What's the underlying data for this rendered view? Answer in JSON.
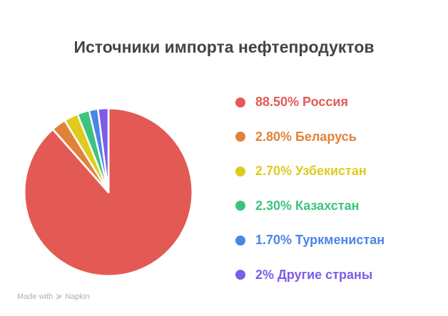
{
  "chart_data": {
    "type": "pie",
    "title": "Источники импорта нефтепродуктов",
    "slices": [
      {
        "label": "88.50% Россия",
        "value": 88.5,
        "color": "#e35a55"
      },
      {
        "label": "2.80% Беларусь",
        "value": 2.8,
        "color": "#e0823a"
      },
      {
        "label": "2.70% Узбекистан",
        "value": 2.7,
        "color": "#dfcb1f"
      },
      {
        "label": "2.30% Казахстан",
        "value": 2.3,
        "color": "#3cc47e"
      },
      {
        "label": "1.70% Туркменистан",
        "value": 1.7,
        "color": "#4a85e8"
      },
      {
        "label": "2% Другие страны",
        "value": 2,
        "color": "#7c5ce8"
      }
    ],
    "legend": "right"
  },
  "footer": {
    "text": "Made with",
    "brand": "Napkin"
  }
}
